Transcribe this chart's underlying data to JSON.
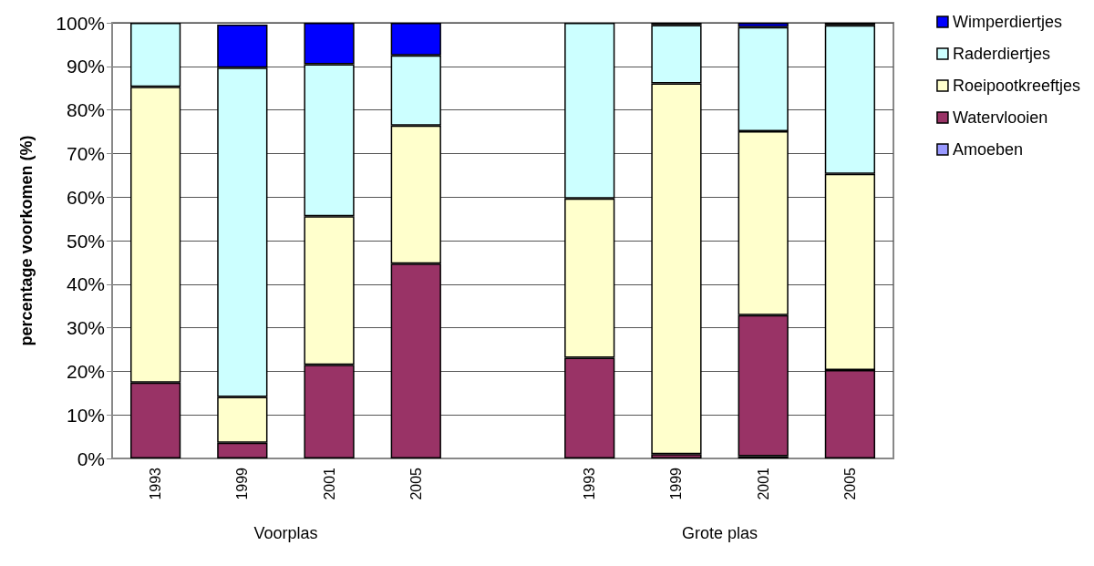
{
  "chart_data": {
    "type": "bar",
    "stacked": true,
    "ylabel": "percentage voorkomen (%)",
    "categories": [
      "1993",
      "1999",
      "2001",
      "2005",
      null,
      "1993",
      "1999",
      "2001",
      "2005"
    ],
    "series": [
      {
        "name": "Amoeben",
        "color": "#9999ff",
        "values": [
          0,
          null,
          0,
          0,
          null,
          0,
          0,
          0.5,
          0
        ]
      },
      {
        "name": "Watervlooien",
        "color": "#993366",
        "values": [
          17.4,
          3.6,
          21.5,
          44.7,
          null,
          23.1,
          1.0,
          32.4,
          20.3
        ]
      },
      {
        "name": "Roeipootkreeftjes",
        "color": "#ffffcc",
        "values": [
          67.9,
          10.5,
          34.1,
          31.7,
          null,
          36.6,
          85.1,
          42.2,
          45.0
        ]
      },
      {
        "name": "Raderdiertjes",
        "color": "#ccffff",
        "values": [
          14.7,
          75.6,
          34.9,
          16.1,
          null,
          40.3,
          13.4,
          23.9,
          34.1
        ]
      },
      {
        "name": "Wimperdiertjes",
        "color": "#0000ff",
        "values": [
          0,
          9.9,
          9.5,
          7.5,
          null,
          0,
          0.5,
          1.0,
          0.6
        ]
      }
    ],
    "ylim": [
      0,
      100
    ],
    "yticks": [
      {
        "value": 0,
        "label": "0%"
      },
      {
        "value": 10,
        "label": "10%"
      },
      {
        "value": 20,
        "label": "20%"
      },
      {
        "value": 30,
        "label": "30%"
      },
      {
        "value": 40,
        "label": "40%"
      },
      {
        "value": 50,
        "label": "50%"
      },
      {
        "value": 60,
        "label": "60%"
      },
      {
        "value": 70,
        "label": "70%"
      },
      {
        "value": 80,
        "label": "80%"
      },
      {
        "value": 90,
        "label": "90%"
      },
      {
        "value": 100,
        "label": "100%"
      }
    ],
    "grid": "y",
    "legend": "right",
    "annotations": [
      "Voorplas",
      "Grote plas"
    ]
  }
}
